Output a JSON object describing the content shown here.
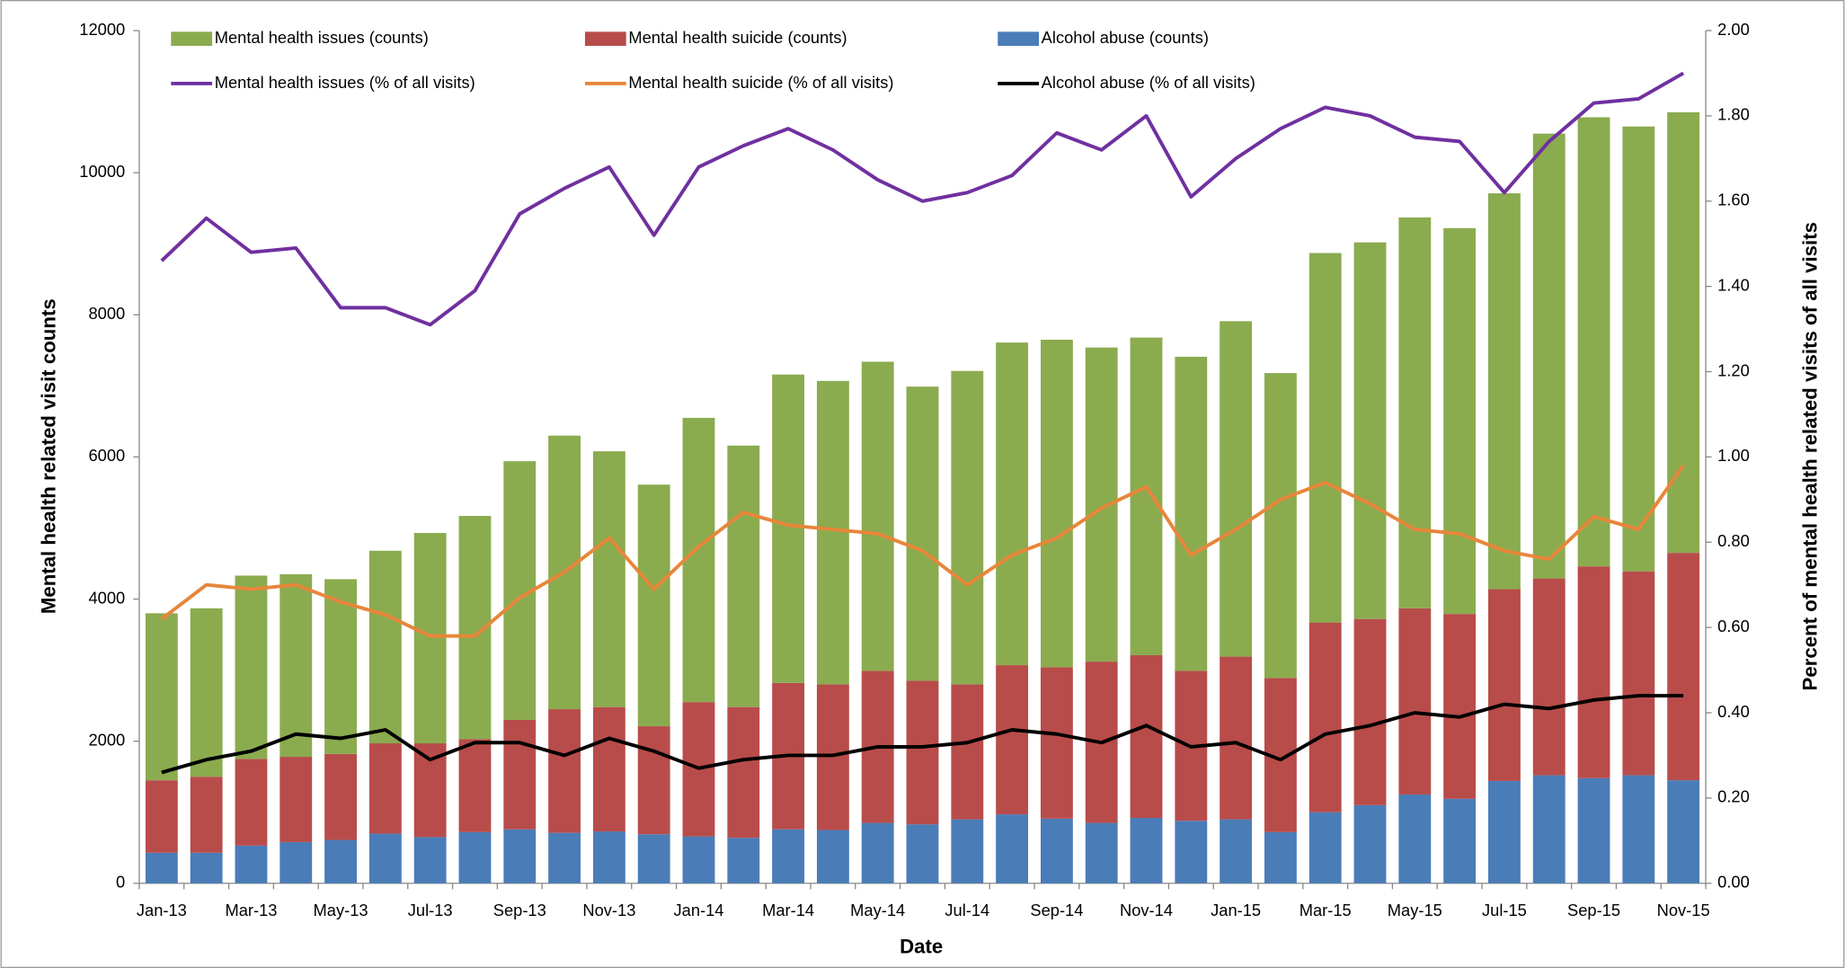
{
  "chart_data": {
    "type": "bar-line",
    "x_label": "Date",
    "y_label": "Mental health related visit counts",
    "y2_label": "Percent of mental health related visits of all visits",
    "categories": [
      "Jan-13",
      null,
      "Mar-13",
      null,
      "May-13",
      null,
      "Jul-13",
      null,
      "Sep-13",
      null,
      "Nov-13",
      null,
      "Jan-14",
      null,
      "Mar-14",
      null,
      "May-14",
      null,
      "Jul-14",
      null,
      "Sep-14",
      null,
      "Nov-14",
      null,
      "Jan-15",
      null,
      "Mar-15",
      null,
      "May-15",
      null,
      "Jul-15",
      null,
      "Sep-15",
      null,
      "Nov-15"
    ],
    "series": [
      {
        "name": "Mental health issues (counts)",
        "type": "bar",
        "color": "#8bab4f",
        "values": [
          2350,
          2370,
          2580,
          2570,
          2460,
          2710,
          2960,
          3140,
          3640,
          3850,
          3600,
          3400,
          4000,
          3680,
          4340,
          4270,
          4350,
          4140,
          4410,
          4540,
          4610,
          4420,
          4470,
          4420,
          4720,
          4290,
          5200,
          5300,
          5500,
          5430,
          5570,
          6260,
          6320,
          6260,
          6200
        ]
      },
      {
        "name": "Mental health suicide (counts)",
        "type": "bar",
        "color": "#b84c4a",
        "values": [
          1020,
          1070,
          1220,
          1200,
          1210,
          1270,
          1320,
          1310,
          1540,
          1740,
          1750,
          1520,
          1890,
          1840,
          2060,
          2050,
          2140,
          2020,
          1900,
          2100,
          2130,
          2270,
          2290,
          2110,
          2290,
          2170,
          2670,
          2620,
          2620,
          2600,
          2700,
          2770,
          2980,
          2870,
          3200
        ]
      },
      {
        "name": "Alcohol abuse (counts)",
        "type": "bar",
        "color": "#4a7cb8",
        "values": [
          430,
          430,
          530,
          580,
          610,
          700,
          650,
          720,
          760,
          710,
          730,
          690,
          660,
          640,
          760,
          750,
          850,
          830,
          900,
          970,
          910,
          850,
          920,
          880,
          900,
          720,
          1000,
          1100,
          1250,
          1190,
          1440,
          1520,
          1480,
          1520,
          1450
        ]
      },
      {
        "name": "Mental health issues (% of all visits)",
        "type": "line",
        "axis": "y2",
        "color": "#7030a0",
        "values": [
          1.46,
          1.56,
          1.48,
          1.49,
          1.35,
          1.35,
          1.31,
          1.39,
          1.57,
          1.63,
          1.68,
          1.52,
          1.68,
          1.73,
          1.77,
          1.72,
          1.65,
          1.6,
          1.62,
          1.66,
          1.76,
          1.72,
          1.8,
          1.61,
          1.7,
          1.77,
          1.82,
          1.8,
          1.75,
          1.74,
          1.62,
          1.74,
          1.83,
          1.84,
          1.9
        ]
      },
      {
        "name": "Mental health suicide (% of all visits)",
        "type": "line",
        "axis": "y2",
        "color": "#e8863a",
        "values": [
          0.62,
          0.7,
          0.69,
          0.7,
          0.66,
          0.63,
          0.58,
          0.58,
          0.67,
          0.73,
          0.81,
          0.69,
          0.79,
          0.87,
          0.84,
          0.83,
          0.82,
          0.78,
          0.7,
          0.77,
          0.81,
          0.88,
          0.93,
          0.77,
          0.83,
          0.9,
          0.94,
          0.89,
          0.83,
          0.82,
          0.78,
          0.76,
          0.86,
          0.83,
          0.98
        ]
      },
      {
        "name": "Alcohol abuse (% of all visits)",
        "type": "line",
        "axis": "y2",
        "color": "#000000",
        "values": [
          0.26,
          0.29,
          0.31,
          0.35,
          0.34,
          0.36,
          0.29,
          0.33,
          0.33,
          0.3,
          0.34,
          0.31,
          0.27,
          0.29,
          0.3,
          0.3,
          0.32,
          0.32,
          0.33,
          0.36,
          0.35,
          0.33,
          0.37,
          0.32,
          0.33,
          0.29,
          0.35,
          0.37,
          0.4,
          0.39,
          0.42,
          0.41,
          0.43,
          0.44,
          0.44
        ]
      }
    ],
    "ylim": [
      0,
      12000
    ],
    "yticks": [
      0,
      2000,
      4000,
      6000,
      8000,
      10000,
      12000
    ],
    "y2lim": [
      0,
      2
    ],
    "y2ticks": [
      {
        "value": 0,
        "label": "0.00"
      },
      {
        "value": 0.2,
        "label": "0.20"
      },
      {
        "value": 0.4,
        "label": "0.40"
      },
      {
        "value": 0.6,
        "label": "0.60"
      },
      {
        "value": 0.8,
        "label": "0.80"
      },
      {
        "value": 1,
        "label": "1.00"
      },
      {
        "value": 1.2,
        "label": "1.20"
      },
      {
        "value": 1.4,
        "label": "1.40"
      },
      {
        "value": 1.6,
        "label": "1.60"
      },
      {
        "value": 1.8,
        "label": "1.80"
      },
      {
        "value": 2,
        "label": "2.00"
      }
    ],
    "legend": "top",
    "grid": false
  }
}
